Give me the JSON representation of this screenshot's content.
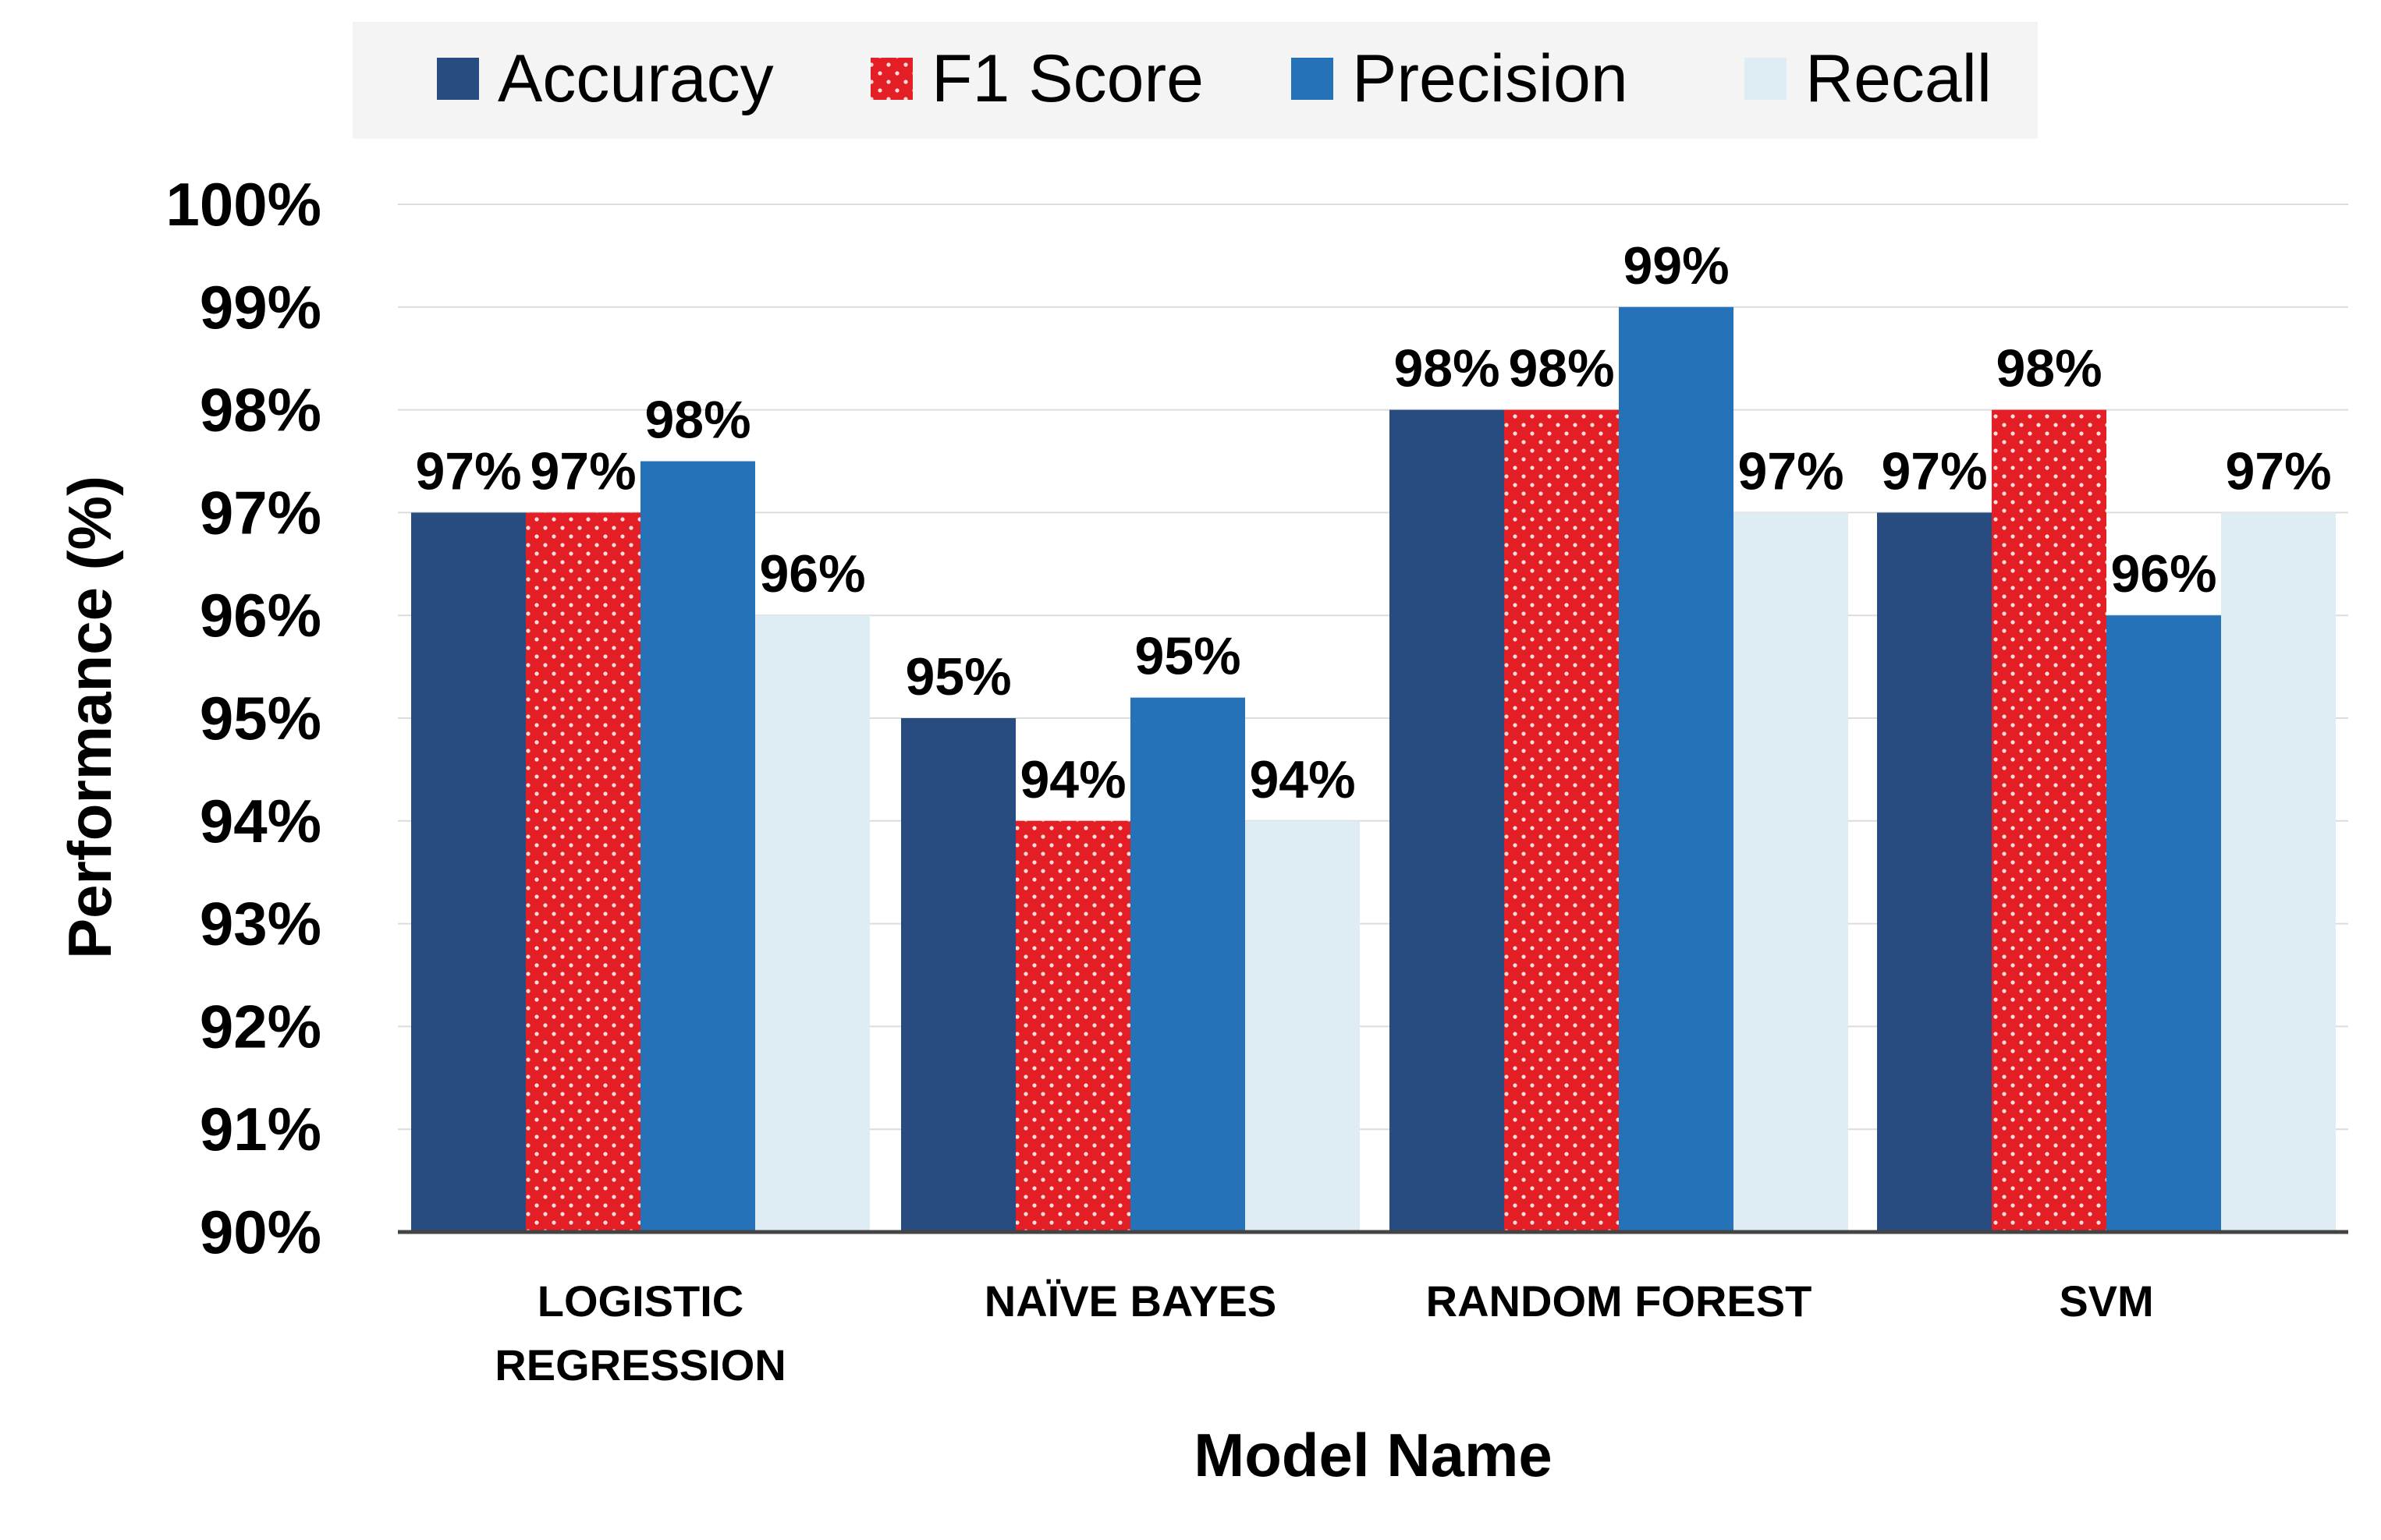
{
  "chart_data": {
    "type": "bar",
    "title": "",
    "xlabel": "Model Name",
    "ylabel": "Performance (%)",
    "ylim": [
      90,
      100
    ],
    "y_ticks": [
      "90%",
      "91%",
      "92%",
      "93%",
      "94%",
      "95%",
      "96%",
      "97%",
      "98%",
      "99%",
      "100%"
    ],
    "grid": true,
    "legend_position": "top",
    "categories": [
      [
        "LOGISTIC",
        "REGRESSION"
      ],
      [
        "NAÏVE BAYES"
      ],
      [
        "RANDOM FOREST"
      ],
      [
        "SVM"
      ]
    ],
    "series": [
      {
        "name": "Accuracy",
        "color": "#284c80",
        "pattern": "solid",
        "values": [
          97,
          95,
          98,
          97
        ],
        "labels": [
          "97%",
          "95%",
          "98%",
          "97%"
        ]
      },
      {
        "name": "F1 Score",
        "color": "#e31e24",
        "pattern": "dotted",
        "values": [
          97,
          94,
          98,
          98
        ],
        "labels": [
          "97%",
          "94%",
          "98%",
          "98%"
        ]
      },
      {
        "name": "Precision",
        "color": "#2672b8",
        "pattern": "solid",
        "values": [
          97.5,
          95.2,
          99,
          96
        ],
        "labels": [
          "98%",
          "95%",
          "99%",
          "96%"
        ]
      },
      {
        "name": "Recall",
        "color": "#deedf4",
        "pattern": "solid",
        "values": [
          96,
          94,
          97,
          97
        ],
        "labels": [
          "96%",
          "94%",
          "97%",
          "97%"
        ]
      }
    ]
  }
}
